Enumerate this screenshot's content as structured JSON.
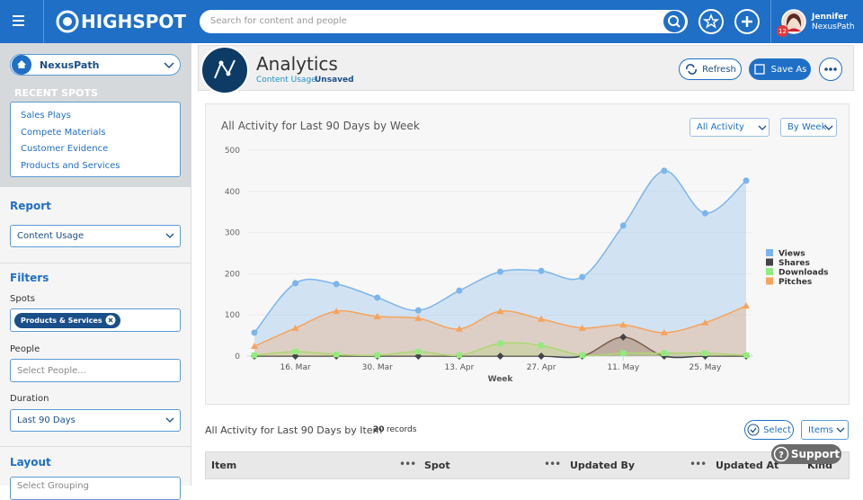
{
  "header": {
    "brand": "HIGHSPOT",
    "search_placeholder": "Search for content and people",
    "notification_count": 12,
    "user_name": "Jennifer",
    "user_org": "NexusPath"
  },
  "sidebar": {
    "spot": "NexusPath",
    "recent_title": "RECENT SPOTS",
    "recent_spots": [
      "Sales Plays",
      "Compete Materials",
      "Customer Evidence",
      "Products and Services"
    ],
    "report_label": "Report",
    "report_value": "Content Usage",
    "filters_label": "Filters",
    "spots_label": "Spots",
    "spots_chip": "Products & Services",
    "people_label": "People",
    "people_placeholder": "Select People...",
    "duration_label": "Duration",
    "duration_value": "Last 90 Days",
    "layout_label": "Layout",
    "layout_placeholder": "Select Grouping"
  },
  "page": {
    "title": "Analytics",
    "subtitle": "Content Usage",
    "status": "Unsaved",
    "refresh": "Refresh",
    "save_as": "Save As"
  },
  "panel": {
    "title": "All Activity for Last 90 Days by Week",
    "activity_filter": "All Activity",
    "interval_filter": "By Week"
  },
  "chart_data": {
    "type": "area",
    "x_label": "Week",
    "categories": [
      null,
      "16. Mar",
      null,
      "30. Mar",
      null,
      "13. Apr",
      null,
      "27. Apr",
      null,
      "11. May",
      null,
      "25. May",
      null
    ],
    "ylim": [
      0,
      500
    ],
    "yticks": [
      0,
      100,
      200,
      300,
      400,
      500
    ],
    "grid": true,
    "legend": "right",
    "series": [
      {
        "name": "Views",
        "color": "#7cb5ec",
        "marker": "circle",
        "values": [
          57,
          177,
          175,
          142,
          111,
          159,
          205,
          207,
          192,
          317,
          450,
          347,
          426
        ]
      },
      {
        "name": "Shares",
        "color": "#434348",
        "marker": "diamond",
        "values": [
          0,
          0,
          0,
          0,
          0,
          0,
          0,
          0,
          0,
          46,
          0,
          0,
          0
        ]
      },
      {
        "name": "Downloads",
        "color": "#90ed7d",
        "marker": "square",
        "values": [
          2,
          11,
          4,
          2,
          11,
          2,
          31,
          26,
          2,
          7,
          7,
          7,
          2
        ]
      },
      {
        "name": "Pitches",
        "color": "#f7a35c",
        "marker": "triangle",
        "values": [
          24,
          68,
          109,
          96,
          92,
          66,
          109,
          90,
          68,
          76,
          57,
          81,
          122
        ]
      }
    ]
  },
  "table": {
    "title": "All Activity for Last 90 Days by Item",
    "record_count": 20,
    "records_label": "records",
    "select": "Select",
    "items": "Items",
    "columns": [
      "Item",
      "Spot",
      "Updated By",
      "Updated At",
      "Kind"
    ],
    "support": "Support"
  }
}
